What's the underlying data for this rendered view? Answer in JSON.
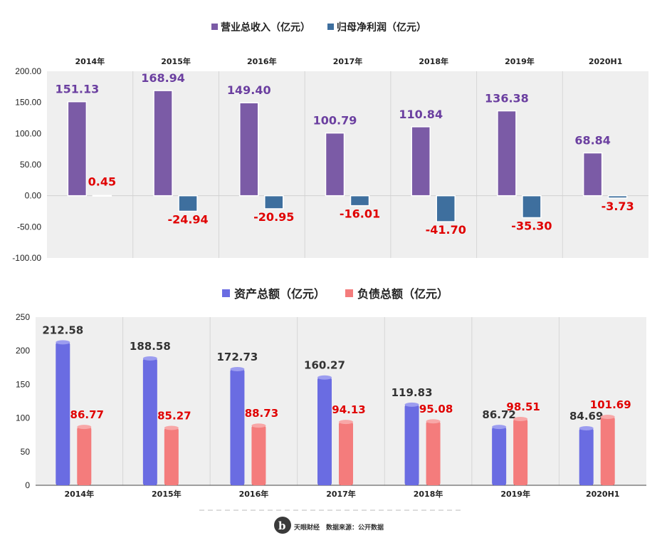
{
  "colors": {
    "revenue": "#7b5ba6",
    "profit": "#3e6f9e",
    "assets": "#6a6ce2",
    "liabilities": "#f47c7c",
    "label_revenue": "#6b3fa0",
    "label_negative": "#e00000",
    "label_dark": "#333333",
    "plot_bg": "#efefef"
  },
  "chart_data": [
    {
      "type": "bar",
      "categories": [
        "2014年",
        "2015年",
        "2016年",
        "2017年",
        "2018年",
        "2019年",
        "2020H1"
      ],
      "series": [
        {
          "name": "营业总收入（亿元）",
          "values": [
            151.13,
            168.94,
            149.4,
            100.79,
            110.84,
            136.38,
            68.84
          ]
        },
        {
          "name": "归母净利润（亿元）",
          "values": [
            0.45,
            -24.94,
            -20.95,
            -16.01,
            -41.7,
            -35.3,
            -3.73
          ]
        }
      ],
      "ylim": [
        -100,
        200
      ],
      "yticks": [
        "200.00",
        "150.00",
        "100.00",
        "50.00",
        "0.00",
        "-50.00",
        "-100.00"
      ],
      "category_axis_position": "top",
      "legend_position": "top-center",
      "grid": "vertical"
    },
    {
      "type": "bar",
      "categories": [
        "2014年",
        "2015年",
        "2016年",
        "2017年",
        "2018年",
        "2019年",
        "2020H1"
      ],
      "series": [
        {
          "name": "资产总额（亿元）",
          "values": [
            212.58,
            188.58,
            172.73,
            160.27,
            119.83,
            86.72,
            84.69
          ]
        },
        {
          "name": "负债总额（亿元）",
          "values": [
            86.77,
            85.27,
            88.73,
            94.13,
            95.08,
            98.51,
            101.69
          ]
        }
      ],
      "ylim": [
        0,
        250
      ],
      "yticks": [
        "250",
        "200",
        "150",
        "100",
        "50",
        "0"
      ],
      "category_axis_position": "bottom",
      "legend_position": "top-center",
      "grid": "vertical",
      "bar_style": "cylinder"
    }
  ],
  "chart1_labels": {
    "revenue": [
      "151.13",
      "168.94",
      "149.40",
      "100.79",
      "110.84",
      "136.38",
      "68.84"
    ],
    "profit": [
      "0.45",
      "-24.94",
      "-20.95",
      "-16.01",
      "-41.70",
      "-35.30",
      "-3.73"
    ]
  },
  "chart2_labels": {
    "assets": [
      "212.58",
      "188.58",
      "172.73",
      "160.27",
      "119.83",
      "86.72",
      "84.69"
    ],
    "liabilities": [
      "86.77",
      "85.27",
      "88.73",
      "94.13",
      "95.08",
      "98.51",
      "101.69"
    ]
  },
  "footer": {
    "logo_text": "天眼财经",
    "source": "数据来源：公开数据"
  }
}
